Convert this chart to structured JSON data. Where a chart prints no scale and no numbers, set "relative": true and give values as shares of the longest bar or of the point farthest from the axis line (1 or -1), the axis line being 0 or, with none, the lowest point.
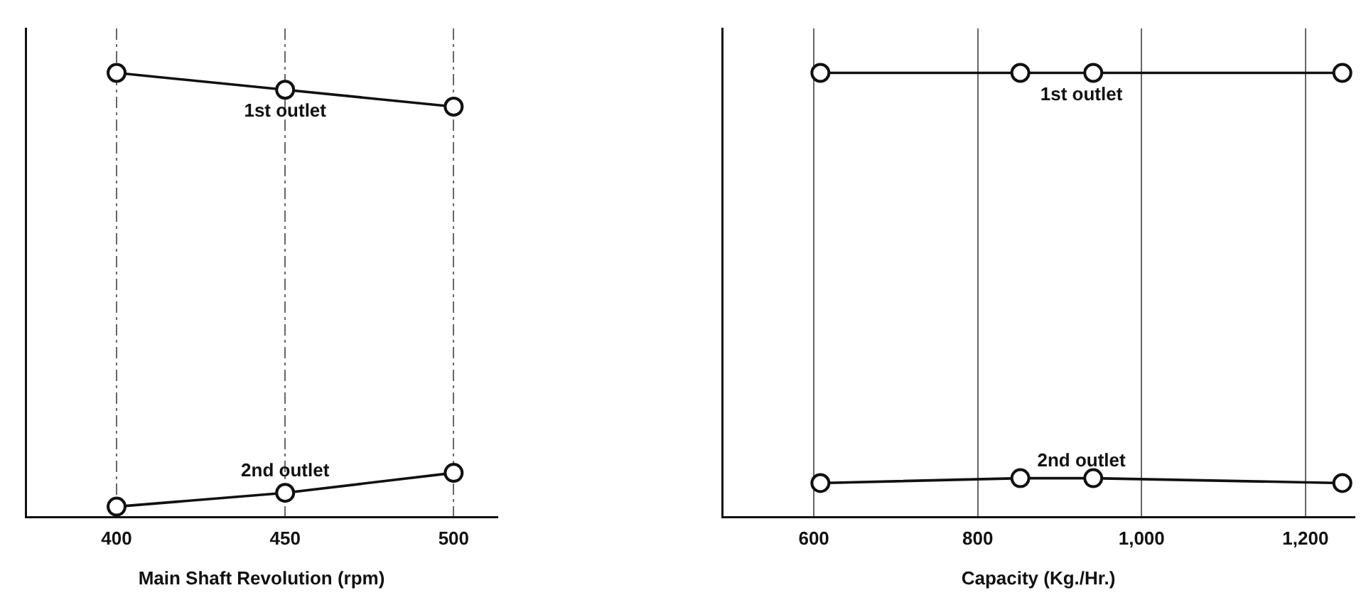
{
  "chart_data": [
    {
      "type": "line",
      "xlabel": "Main Shaft Revolution (rpm)",
      "x": [
        400,
        450,
        500
      ],
      "xlim": [
        373,
        513
      ],
      "xticks": [
        400,
        450,
        500
      ],
      "relative": true,
      "grid": "x",
      "legend": false,
      "marker": "circle",
      "line_style": "solid",
      "series": [
        {
          "name": "1st outlet",
          "color": "#111111",
          "values": [
            1,
            0.962,
            0.924
          ]
        },
        {
          "name": "2nd outlet",
          "color": "#111111",
          "values": [
            0.024,
            0.055,
            0.1
          ]
        }
      ]
    },
    {
      "type": "line",
      "xlabel": "Capacity (Kg./Hr.)",
      "x": [
        608,
        852,
        941,
        1245
      ],
      "xlim": [
        488,
        1260
      ],
      "xticks": [
        600,
        800,
        {
          "value": 1000,
          "label": "1,000"
        },
        {
          "value": 1200,
          "label": "1,200"
        }
      ],
      "relative": true,
      "grid": "x",
      "legend": false,
      "marker": "circle",
      "line_style": "solid",
      "series": [
        {
          "name": "1st outlet",
          "color": "#111111",
          "values": [
            1,
            1,
            1,
            1
          ]
        },
        {
          "name": "2nd outlet",
          "color": "#111111",
          "values": [
            0.077,
            0.088,
            0.088,
            0.077
          ]
        }
      ]
    }
  ]
}
